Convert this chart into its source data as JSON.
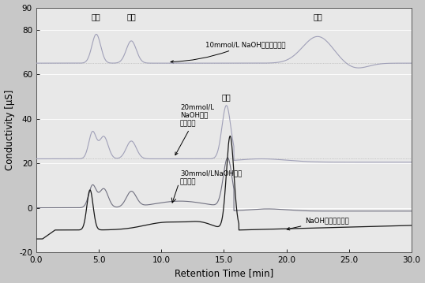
{
  "title": "",
  "xlabel": "Retention Time [min]",
  "ylabel": "Conductivity [μS]",
  "xlim": [
    0.0,
    30.0
  ],
  "ylim": [
    -20,
    90
  ],
  "yticks": [
    -20,
    0,
    20,
    40,
    60,
    80,
    90
  ],
  "xtick_vals": [
    0.0,
    5.0,
    10.0,
    15.0,
    20.0,
    25.0,
    30.0
  ],
  "xtick_labels": [
    "0.0",
    "5.0",
    "10.0",
    "15.0",
    "20.0",
    "25.0",
    "30.0"
  ],
  "bg_color": "#c8c8c8",
  "plot_bg_color": "#e8e8e8",
  "grid_color": "#ffffff",
  "color_10mmol": "#a0a0b8",
  "color_20mmol": "#a0a0b8",
  "color_30mmol": "#707080",
  "color_gradient": "#181818",
  "baseline_10mmol": 65.0,
  "baseline_20mmol": 22.0,
  "baseline_30mmol": 0.0,
  "baseline_gradient": -10.0,
  "label_草酸_1": "草酸",
  "label_草酸_2": "草酸",
  "label_岸酸": "岜酸",
  "label_草酸_mid": "草酸",
  "label_10mmol_text": "10mmol/L NaOH容液等度洗脱",
  "label_20mmol_text": "20mmol/L\nNaOH容液\n等度洗脱",
  "label_30mmol_text": "30mmol/LNaOH容液\n等度洗脱",
  "label_gradient_text": "NaOH容液梯度洗脱"
}
